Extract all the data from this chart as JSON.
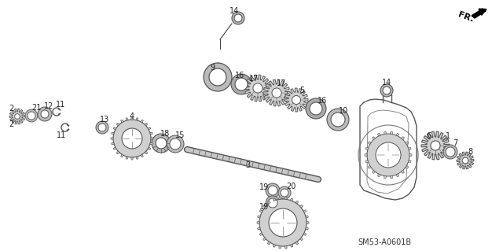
{
  "background_color": "#ffffff",
  "diagram_code": "SM53-A0601B",
  "line_color": "#444444",
  "text_color": "#222222",
  "gear_fill": "#d0d0d0",
  "gear_edge": "#555555",
  "washer_fill": "#bbbbbb",
  "shaft_fill": "#c8c8c8",
  "housing_edge": "#555555"
}
